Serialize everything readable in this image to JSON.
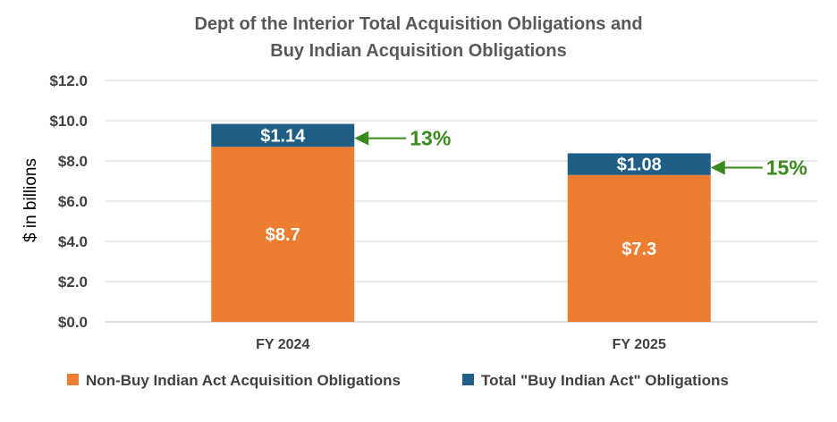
{
  "chart_data": {
    "type": "bar",
    "stacked": true,
    "title": [
      "Dept of the Interior Total Acquisition Obligations and",
      "Buy Indian Acquisition Obligations"
    ],
    "xlabel": "",
    "ylabel": "$ in billions",
    "ylim": [
      0,
      12
    ],
    "yticks": [
      0,
      2,
      4,
      6,
      8,
      10,
      12
    ],
    "ytick_labels": [
      "$0.0",
      "$2.0",
      "$4.0",
      "$6.0",
      "$8.0",
      "$10.0",
      "$12.0"
    ],
    "grid": true,
    "legend_position": "bottom",
    "categories": [
      "FY 2024",
      "FY 2025"
    ],
    "series": [
      {
        "name": "Non-Buy Indian Act Acquisition Obligations",
        "color": "#ed7d31",
        "values": [
          8.7,
          7.3
        ],
        "labels": [
          "$8.7",
          "$7.3"
        ]
      },
      {
        "name": "Total \"Buy Indian Act\" Obligations",
        "color": "#1f5f85",
        "values": [
          1.14,
          1.08
        ],
        "labels": [
          "$1.14",
          "$1.08"
        ]
      }
    ],
    "annotations": [
      {
        "category": "FY 2024",
        "text": "13%",
        "color": "#3a8a1e"
      },
      {
        "category": "FY 2025",
        "text": "15%",
        "color": "#3a8a1e"
      }
    ]
  }
}
